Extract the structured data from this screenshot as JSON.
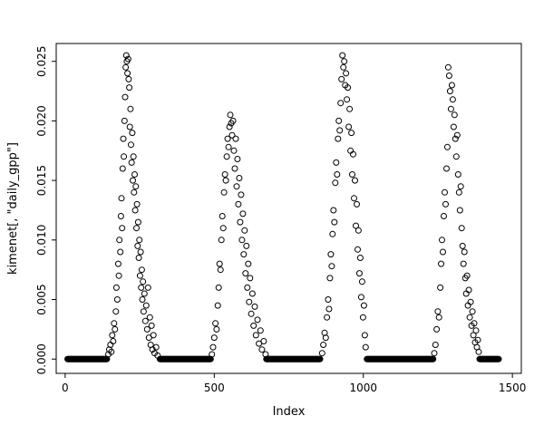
{
  "chart_data": {
    "type": "scatter",
    "title": "",
    "xlabel": "Index",
    "ylabel": "kimenet[, \"daily_gpp\"]",
    "legend": "none",
    "grid": false,
    "marker": "open-circle",
    "marker_color": "#000000",
    "background_color": "#ffffff",
    "axis_color": "#000000",
    "x_ticks": [
      0,
      500,
      1000,
      1500
    ],
    "y_ticks": [
      0.0,
      0.005,
      0.01,
      0.015,
      0.02,
      0.025
    ],
    "xlim": [
      -30,
      1530
    ],
    "ylim": [
      -0.0012,
      0.0265
    ],
    "zero_value": 0.0,
    "zero_runs": [
      [
        8,
        140
      ],
      [
        318,
        488
      ],
      [
        675,
        855
      ],
      [
        1012,
        1234
      ],
      [
        1390,
        1455
      ]
    ],
    "points": [
      [
        145,
        0.0004
      ],
      [
        148,
        0.0008
      ],
      [
        152,
        0.0012
      ],
      [
        155,
        0.0006
      ],
      [
        158,
        0.002
      ],
      [
        161,
        0.0015
      ],
      [
        164,
        0.003
      ],
      [
        167,
        0.0025
      ],
      [
        170,
        0.004
      ],
      [
        172,
        0.006
      ],
      [
        175,
        0.005
      ],
      [
        178,
        0.008
      ],
      [
        180,
        0.007
      ],
      [
        182,
        0.01
      ],
      [
        185,
        0.009
      ],
      [
        187,
        0.012
      ],
      [
        189,
        0.0135
      ],
      [
        191,
        0.011
      ],
      [
        193,
        0.016
      ],
      [
        195,
        0.0185
      ],
      [
        197,
        0.017
      ],
      [
        199,
        0.02
      ],
      [
        201,
        0.022
      ],
      [
        203,
        0.0245
      ],
      [
        205,
        0.0255
      ],
      [
        207,
        0.025
      ],
      [
        209,
        0.024
      ],
      [
        211,
        0.0252
      ],
      [
        213,
        0.0235
      ],
      [
        215,
        0.0228
      ],
      [
        217,
        0.0195
      ],
      [
        219,
        0.021
      ],
      [
        221,
        0.018
      ],
      [
        223,
        0.0165
      ],
      [
        225,
        0.019
      ],
      [
        227,
        0.015
      ],
      [
        229,
        0.017
      ],
      [
        231,
        0.014
      ],
      [
        233,
        0.0155
      ],
      [
        235,
        0.0125
      ],
      [
        237,
        0.0145
      ],
      [
        239,
        0.011
      ],
      [
        241,
        0.013
      ],
      [
        243,
        0.0095
      ],
      [
        245,
        0.0115
      ],
      [
        247,
        0.0085
      ],
      [
        249,
        0.01
      ],
      [
        251,
        0.007
      ],
      [
        253,
        0.009
      ],
      [
        255,
        0.006
      ],
      [
        257,
        0.0075
      ],
      [
        259,
        0.005
      ],
      [
        261,
        0.0065
      ],
      [
        263,
        0.004
      ],
      [
        266,
        0.0055
      ],
      [
        269,
        0.0032
      ],
      [
        272,
        0.0045
      ],
      [
        275,
        0.0025
      ],
      [
        278,
        0.006
      ],
      [
        281,
        0.0018
      ],
      [
        284,
        0.0035
      ],
      [
        287,
        0.0012
      ],
      [
        290,
        0.0028
      ],
      [
        293,
        0.0008
      ],
      [
        296,
        0.002
      ],
      [
        300,
        0.0005
      ],
      [
        305,
        0.001
      ],
      [
        310,
        0.0003
      ],
      [
        492,
        0.0004
      ],
      [
        496,
        0.001
      ],
      [
        500,
        0.0018
      ],
      [
        504,
        0.003
      ],
      [
        508,
        0.0025
      ],
      [
        512,
        0.0045
      ],
      [
        515,
        0.006
      ],
      [
        518,
        0.008
      ],
      [
        521,
        0.0075
      ],
      [
        524,
        0.01
      ],
      [
        527,
        0.012
      ],
      [
        530,
        0.011
      ],
      [
        533,
        0.014
      ],
      [
        536,
        0.0155
      ],
      [
        539,
        0.015
      ],
      [
        542,
        0.017
      ],
      [
        545,
        0.0185
      ],
      [
        548,
        0.0178
      ],
      [
        551,
        0.0195
      ],
      [
        554,
        0.0205
      ],
      [
        557,
        0.0198
      ],
      [
        560,
        0.0188
      ],
      [
        563,
        0.02
      ],
      [
        566,
        0.0175
      ],
      [
        569,
        0.016
      ],
      [
        572,
        0.0185
      ],
      [
        575,
        0.0145
      ],
      [
        578,
        0.0168
      ],
      [
        581,
        0.013
      ],
      [
        584,
        0.0152
      ],
      [
        587,
        0.0115
      ],
      [
        590,
        0.0138
      ],
      [
        593,
        0.01
      ],
      [
        596,
        0.0122
      ],
      [
        599,
        0.0088
      ],
      [
        602,
        0.0108
      ],
      [
        605,
        0.0072
      ],
      [
        608,
        0.0095
      ],
      [
        611,
        0.006
      ],
      [
        614,
        0.008
      ],
      [
        617,
        0.0048
      ],
      [
        620,
        0.0068
      ],
      [
        624,
        0.0038
      ],
      [
        628,
        0.0055
      ],
      [
        632,
        0.0028
      ],
      [
        636,
        0.0044
      ],
      [
        640,
        0.002
      ],
      [
        645,
        0.0033
      ],
      [
        650,
        0.0013
      ],
      [
        655,
        0.0024
      ],
      [
        660,
        0.0008
      ],
      [
        666,
        0.0015
      ],
      [
        672,
        0.0004
      ],
      [
        862,
        0.0005
      ],
      [
        866,
        0.0012
      ],
      [
        870,
        0.0022
      ],
      [
        874,
        0.0018
      ],
      [
        878,
        0.0035
      ],
      [
        882,
        0.005
      ],
      [
        885,
        0.0042
      ],
      [
        888,
        0.0068
      ],
      [
        891,
        0.0088
      ],
      [
        894,
        0.0078
      ],
      [
        897,
        0.0105
      ],
      [
        900,
        0.0125
      ],
      [
        903,
        0.0115
      ],
      [
        906,
        0.0148
      ],
      [
        909,
        0.0165
      ],
      [
        912,
        0.0155
      ],
      [
        915,
        0.0185
      ],
      [
        918,
        0.02
      ],
      [
        921,
        0.0192
      ],
      [
        924,
        0.0215
      ],
      [
        927,
        0.0235
      ],
      [
        930,
        0.0255
      ],
      [
        933,
        0.0245
      ],
      [
        936,
        0.025
      ],
      [
        939,
        0.023
      ],
      [
        942,
        0.024
      ],
      [
        945,
        0.0218
      ],
      [
        948,
        0.0228
      ],
      [
        951,
        0.0195
      ],
      [
        954,
        0.021
      ],
      [
        957,
        0.0175
      ],
      [
        960,
        0.019
      ],
      [
        963,
        0.0155
      ],
      [
        966,
        0.0172
      ],
      [
        969,
        0.0135
      ],
      [
        972,
        0.015
      ],
      [
        975,
        0.0112
      ],
      [
        978,
        0.013
      ],
      [
        981,
        0.0092
      ],
      [
        984,
        0.0108
      ],
      [
        987,
        0.0072
      ],
      [
        990,
        0.0085
      ],
      [
        993,
        0.0052
      ],
      [
        996,
        0.0065
      ],
      [
        999,
        0.0035
      ],
      [
        1002,
        0.0045
      ],
      [
        1005,
        0.002
      ],
      [
        1008,
        0.001
      ],
      [
        1238,
        0.0005
      ],
      [
        1242,
        0.0012
      ],
      [
        1246,
        0.0025
      ],
      [
        1250,
        0.004
      ],
      [
        1254,
        0.0035
      ],
      [
        1258,
        0.006
      ],
      [
        1261,
        0.008
      ],
      [
        1264,
        0.01
      ],
      [
        1267,
        0.009
      ],
      [
        1270,
        0.012
      ],
      [
        1273,
        0.014
      ],
      [
        1276,
        0.013
      ],
      [
        1279,
        0.016
      ],
      [
        1282,
        0.0178
      ],
      [
        1285,
        0.0245
      ],
      [
        1288,
        0.0238
      ],
      [
        1291,
        0.0225
      ],
      [
        1294,
        0.021
      ],
      [
        1297,
        0.023
      ],
      [
        1300,
        0.0218
      ],
      [
        1303,
        0.0195
      ],
      [
        1306,
        0.0205
      ],
      [
        1309,
        0.0185
      ],
      [
        1312,
        0.017
      ],
      [
        1315,
        0.0188
      ],
      [
        1318,
        0.0155
      ],
      [
        1321,
        0.014
      ],
      [
        1324,
        0.0125
      ],
      [
        1327,
        0.0145
      ],
      [
        1330,
        0.011
      ],
      [
        1333,
        0.0095
      ],
      [
        1336,
        0.008
      ],
      [
        1339,
        0.009
      ],
      [
        1342,
        0.0068
      ],
      [
        1345,
        0.0055
      ],
      [
        1348,
        0.007
      ],
      [
        1351,
        0.0045
      ],
      [
        1354,
        0.0058
      ],
      [
        1357,
        0.0035
      ],
      [
        1360,
        0.0048
      ],
      [
        1363,
        0.0028
      ],
      [
        1366,
        0.004
      ],
      [
        1369,
        0.002
      ],
      [
        1372,
        0.003
      ],
      [
        1375,
        0.0014
      ],
      [
        1378,
        0.0024
      ],
      [
        1381,
        0.001
      ],
      [
        1384,
        0.0016
      ],
      [
        1387,
        0.0006
      ]
    ]
  }
}
